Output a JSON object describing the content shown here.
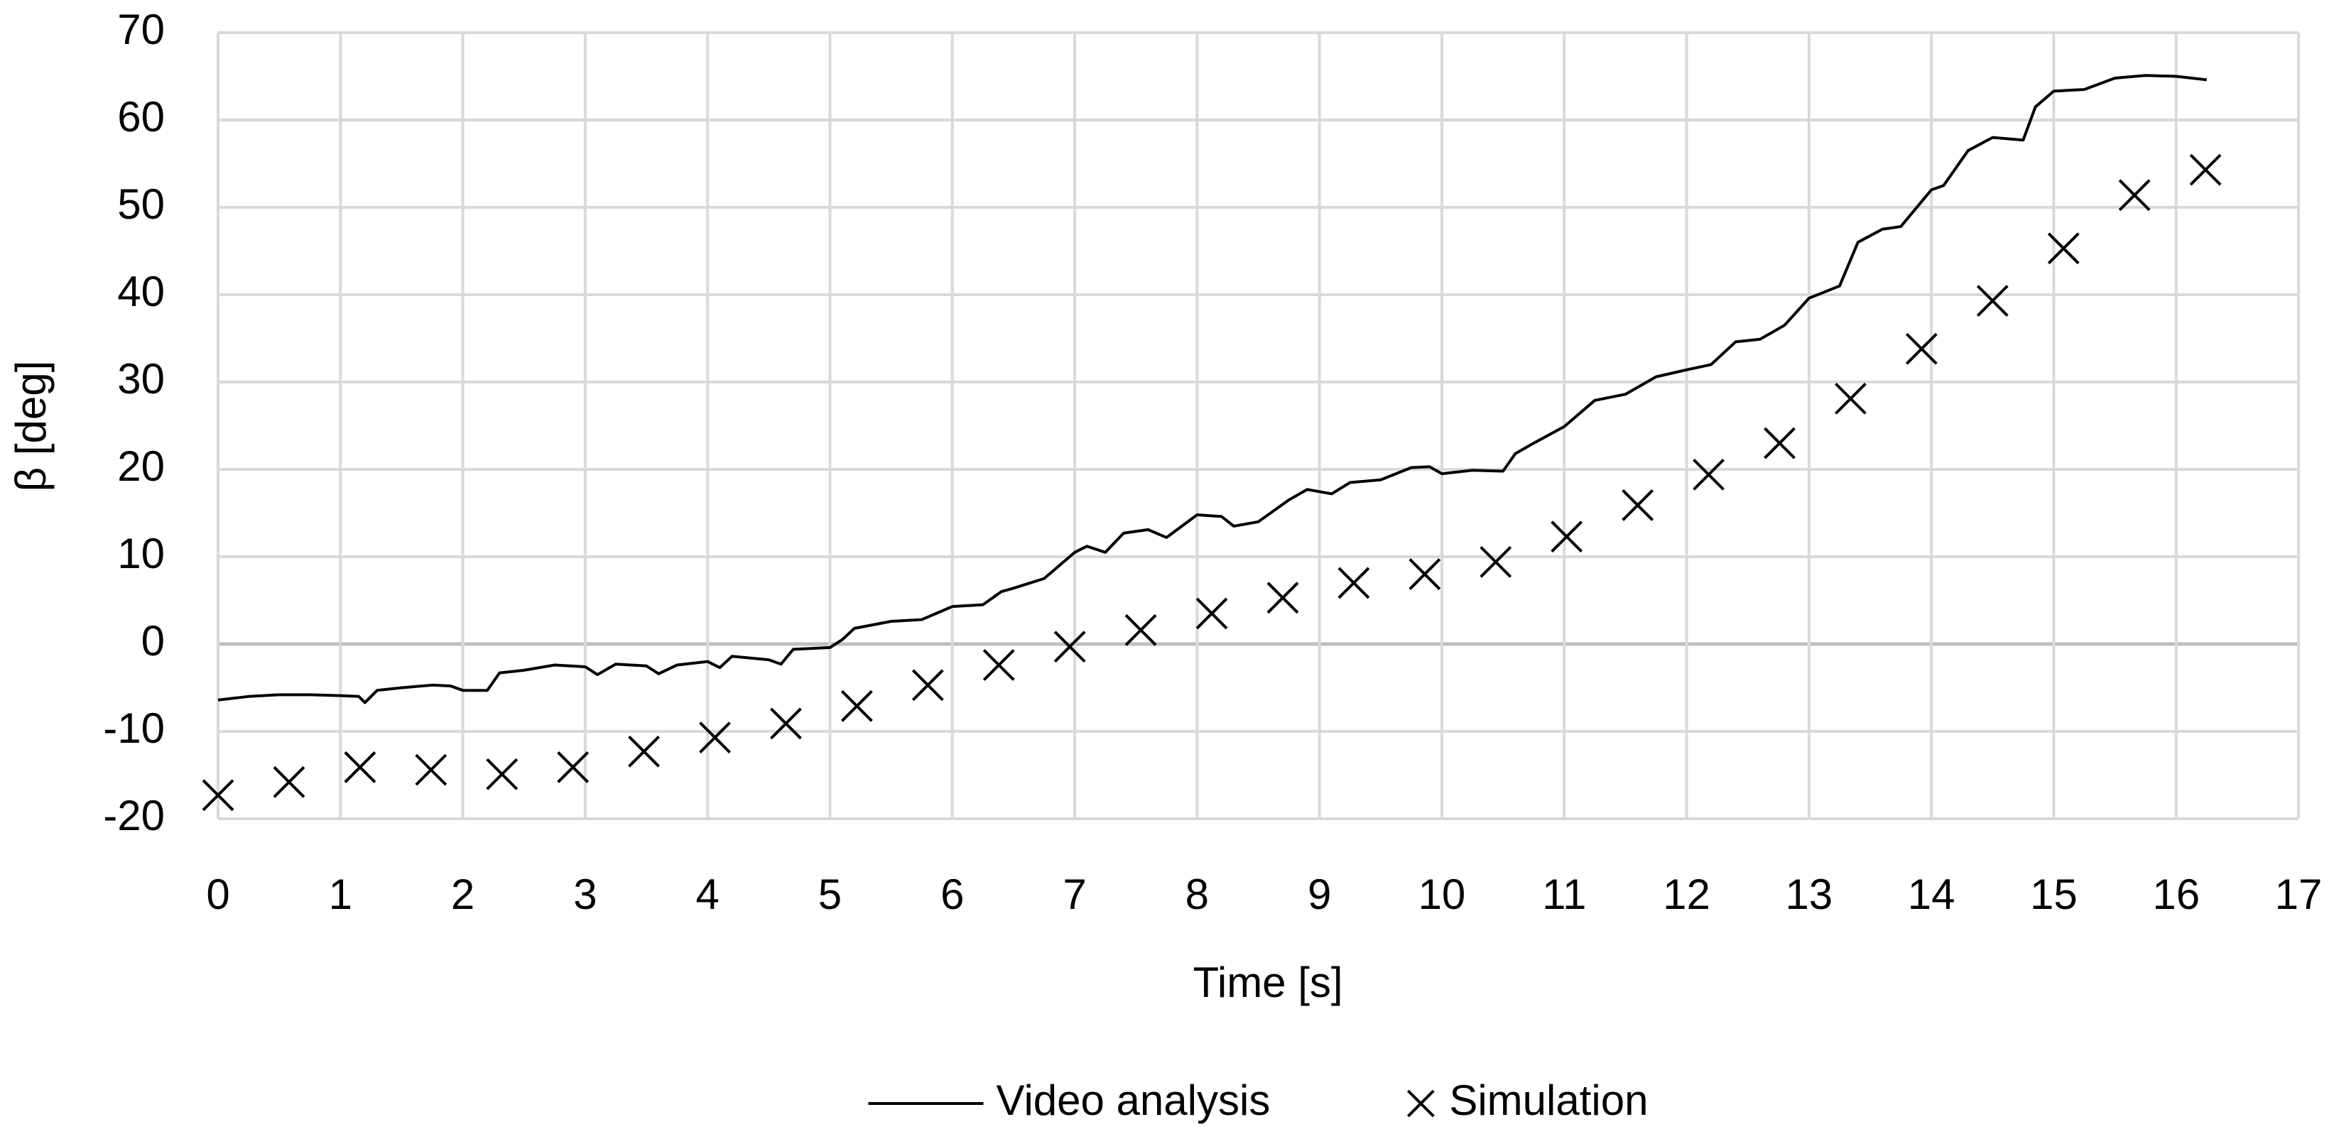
{
  "chart_data": {
    "type": "line",
    "xlabel": "Time [s]",
    "ylabel": "β [deg]",
    "xlim": [
      0,
      17
    ],
    "xticks": [
      0,
      1,
      2,
      3,
      4,
      5,
      6,
      7,
      8,
      9,
      10,
      11,
      12,
      13,
      14,
      15,
      16,
      17
    ],
    "ylim": [
      -20,
      70
    ],
    "yticks": [
      -20,
      -10,
      0,
      10,
      20,
      30,
      40,
      50,
      60,
      70
    ],
    "grid": true,
    "legend": "bottom",
    "series": [
      {
        "name": "Video analysis",
        "type": "line",
        "color": "#000000",
        "x": [
          0,
          0.25,
          0.5,
          0.75,
          1.0,
          1.15,
          1.2,
          1.3,
          1.5,
          1.75,
          1.9,
          2.0,
          2.2,
          2.3,
          2.5,
          2.75,
          3.0,
          3.1,
          3.25,
          3.5,
          3.6,
          3.75,
          4.0,
          4.1,
          4.2,
          4.5,
          4.6,
          4.7,
          5.0,
          5.1,
          5.2,
          5.5,
          5.75,
          6.0,
          6.25,
          6.4,
          6.5,
          6.75,
          7.0,
          7.1,
          7.25,
          7.4,
          7.6,
          7.75,
          8.0,
          8.2,
          8.3,
          8.5,
          8.75,
          8.9,
          9.1,
          9.25,
          9.5,
          9.75,
          9.9,
          10.0,
          10.25,
          10.5,
          10.6,
          10.75,
          11.0,
          11.25,
          11.5,
          11.75,
          12.0,
          12.2,
          12.4,
          12.6,
          12.8,
          13.0,
          13.25,
          13.4,
          13.6,
          13.75,
          14.0,
          14.1,
          14.3,
          14.5,
          14.75,
          14.85,
          15.0,
          15.25,
          15.5,
          15.75,
          16.0,
          16.25
        ],
        "values": [
          -6.4,
          -6.0,
          -5.8,
          -5.8,
          -5.9,
          -6.0,
          -6.7,
          -5.3,
          -5.0,
          -4.7,
          -4.8,
          -5.3,
          -5.3,
          -3.3,
          -3.0,
          -2.4,
          -2.6,
          -3.5,
          -2.3,
          -2.5,
          -3.4,
          -2.4,
          -2.0,
          -2.7,
          -1.4,
          -1.8,
          -2.3,
          -0.6,
          -0.4,
          0.5,
          1.8,
          2.6,
          2.8,
          4.3,
          4.5,
          6.0,
          6.4,
          7.5,
          10.5,
          11.2,
          10.5,
          12.7,
          13.1,
          12.2,
          14.8,
          14.6,
          13.5,
          14.0,
          16.5,
          17.7,
          17.2,
          18.5,
          18.8,
          20.2,
          20.3,
          19.5,
          19.9,
          19.8,
          21.8,
          23.0,
          24.9,
          27.9,
          28.6,
          30.6,
          31.4,
          32.0,
          34.6,
          34.9,
          36.5,
          39.6,
          41.0,
          46.0,
          47.5,
          47.8,
          52.0,
          52.5,
          56.5,
          58.0,
          57.7,
          61.5,
          63.3,
          63.5,
          64.8,
          65.1,
          65.0,
          64.6
        ]
      },
      {
        "name": "Simulation",
        "type": "scatter",
        "color": "#000000",
        "x": [
          0,
          0.58,
          1.16,
          1.74,
          2.32,
          2.9,
          3.48,
          4.06,
          4.64,
          5.22,
          5.8,
          6.38,
          6.96,
          7.54,
          8.12,
          8.7,
          9.28,
          9.86,
          10.44,
          11.02,
          11.6,
          12.18,
          12.76,
          13.34,
          13.92,
          14.5,
          15.08,
          15.66,
          16.24
        ],
        "values": [
          -17.3,
          -15.8,
          -14.1,
          -14.4,
          -14.9,
          -14.1,
          -12.3,
          -10.7,
          -9.1,
          -7.1,
          -4.7,
          -2.4,
          -0.3,
          1.6,
          3.5,
          5.3,
          7.0,
          8.0,
          9.4,
          12.3,
          15.9,
          19.4,
          23.0,
          28.1,
          33.8,
          39.3,
          45.3,
          51.4,
          54.3
        ]
      }
    ]
  }
}
